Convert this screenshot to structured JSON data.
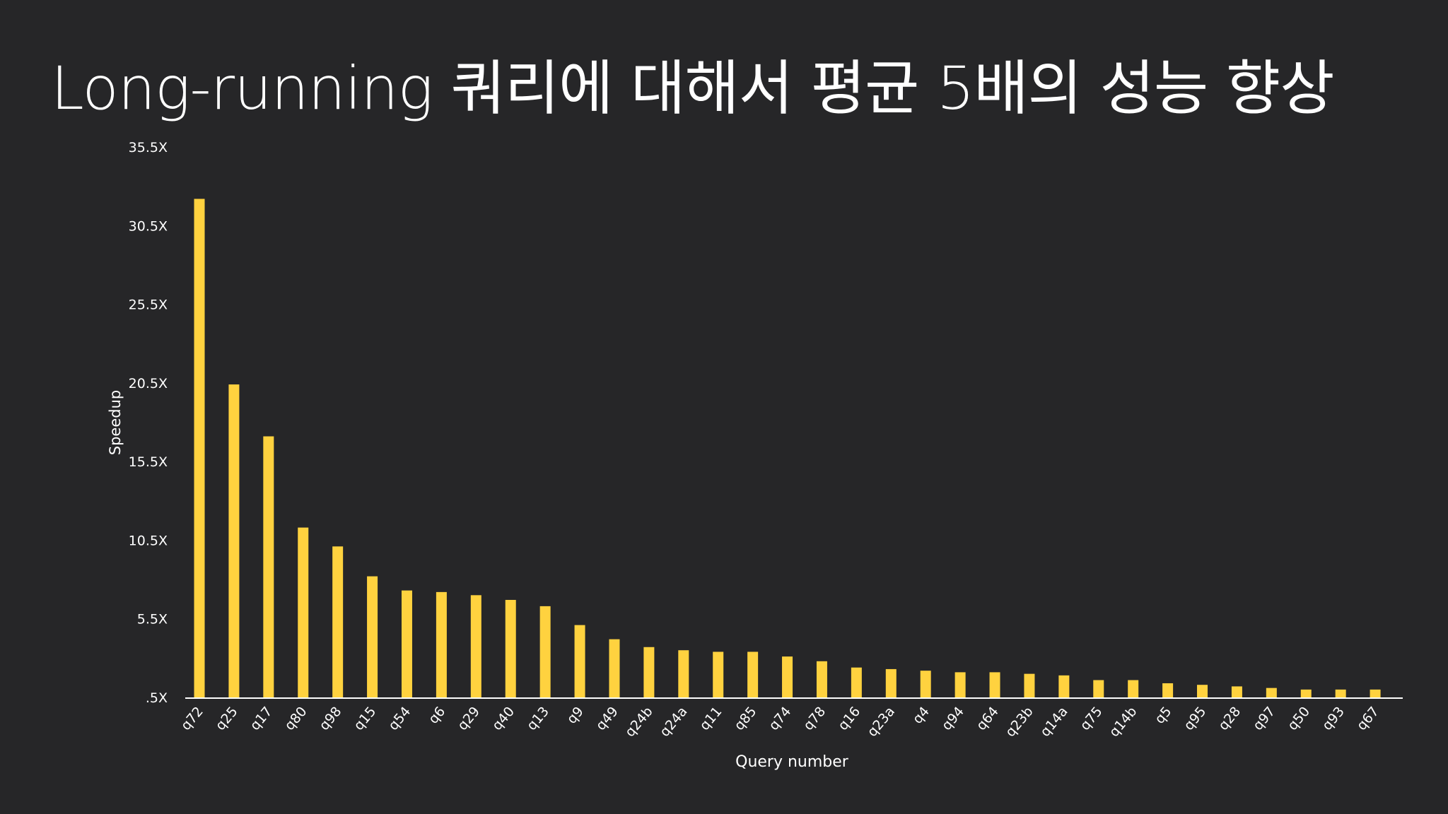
{
  "slide": {
    "title": "Long-running 쿼리에 대해서 평균 5배의 성능 향상"
  },
  "colors": {
    "background": "#262628",
    "bar": "#FFD23F",
    "axis": "#FFFFFF",
    "text": "#FFFFFF"
  },
  "chart_data": {
    "type": "bar",
    "title": "",
    "xlabel": "Query number",
    "ylabel": "Speedup",
    "ylim": [
      0.5,
      35.5
    ],
    "yticks": [
      0.5,
      5.5,
      10.5,
      15.5,
      20.5,
      25.5,
      30.5,
      35.5
    ],
    "ytick_labels": [
      ".5X",
      "5.5X",
      "10.5X",
      "15.5X",
      "20.5X",
      "25.5X",
      "30.5X",
      "35.5X"
    ],
    "grid": false,
    "legend": "none",
    "categories": [
      "q72",
      "q25",
      "q17",
      "q80",
      "q98",
      "q15",
      "q54",
      "q6",
      "q29",
      "q40",
      "q13",
      "q9",
      "q49",
      "q24b",
      "q24a",
      "q11",
      "q85",
      "q74",
      "q78",
      "q16",
      "q23a",
      "q4",
      "q94",
      "q64",
      "q23b",
      "q14a",
      "q75",
      "q14b",
      "q5",
      "q95",
      "q28",
      "q97",
      "q50",
      "q93",
      "q67"
    ],
    "values": [
      32.2,
      20.4,
      17.1,
      11.3,
      10.1,
      8.2,
      7.3,
      7.2,
      7.0,
      6.7,
      6.3,
      5.1,
      4.2,
      3.7,
      3.5,
      3.4,
      3.4,
      3.1,
      2.8,
      2.4,
      2.3,
      2.2,
      2.1,
      2.1,
      2.0,
      1.9,
      1.6,
      1.6,
      1.4,
      1.3,
      1.2,
      1.1,
      1.0,
      1.0,
      1.0
    ]
  }
}
